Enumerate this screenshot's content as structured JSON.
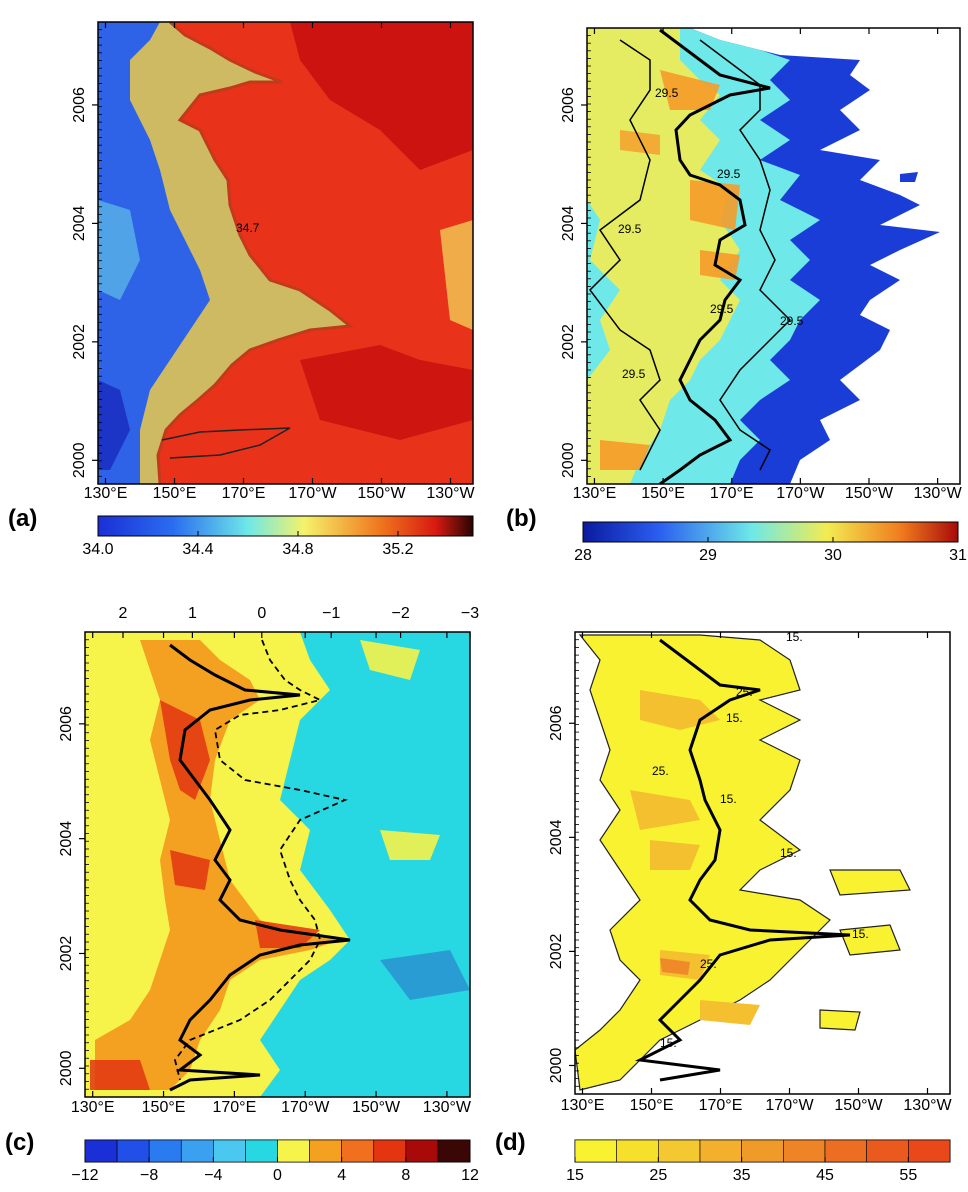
{
  "chart_data": [
    {
      "panel": "(a)",
      "type": "heatmap",
      "x_ticks": [
        "130°E",
        "150°E",
        "170°E",
        "170°W",
        "150°W",
        "130°W"
      ],
      "y_ticks": [
        "2000",
        "2002",
        "2004",
        "2006"
      ],
      "colorbar": {
        "ticks": [
          "34.0",
          "34.4",
          "34.8",
          "35.2"
        ],
        "range": [
          34.0,
          35.5
        ]
      },
      "contour_label": "34.7",
      "colors": {
        "low": "#1a2fd6",
        "mid": "#f5f26a",
        "high": "#e01a10",
        "contour": "#c23a1c"
      }
    },
    {
      "panel": "(b)",
      "type": "heatmap",
      "x_ticks": [
        "130°E",
        "150°E",
        "170°E",
        "170°W",
        "150°W",
        "130°W"
      ],
      "y_ticks": [
        "2000",
        "2002",
        "2004",
        "2006"
      ],
      "colorbar": {
        "ticks": [
          "28",
          "29",
          "30",
          "31"
        ],
        "range": [
          28,
          31
        ]
      },
      "contour_labels": [
        "29.5",
        "29.5",
        "29.5",
        "29.5",
        "29.5",
        "29.5"
      ],
      "colors": {
        "low": "#1a2fd6",
        "mid": "#6ee8e8",
        "high": "#f59b2a"
      }
    },
    {
      "panel": "(c)",
      "type": "heatmap",
      "x_ticks": [
        "130°E",
        "150°E",
        "170°E",
        "170°W",
        "150°W",
        "130°W"
      ],
      "y_ticks": [
        "2000",
        "2002",
        "2004",
        "2006"
      ],
      "top_axis_ticks": [
        "2",
        "1",
        "0",
        "−1",
        "−2",
        "−3"
      ],
      "colorbar": {
        "ticks": [
          "−12",
          "−8",
          "−4",
          "0",
          "4",
          "8",
          "12"
        ],
        "range": [
          -12,
          12
        ]
      },
      "colors": {
        "background": "#27d8e2",
        "warm1": "#f6f34a",
        "warm2": "#f4a020",
        "warm3": "#e23510"
      }
    },
    {
      "panel": "(d)",
      "type": "heatmap",
      "x_ticks": [
        "130°E",
        "150°E",
        "170°E",
        "170°W",
        "150°W",
        "130°W"
      ],
      "y_ticks": [
        "2000",
        "2002",
        "2004",
        "2006"
      ],
      "colorbar": {
        "ticks": [
          "15",
          "25",
          "35",
          "45",
          "55"
        ],
        "range": [
          15,
          60
        ]
      },
      "contour_labels": [
        "15.",
        "25.",
        "15.",
        "25.",
        "15.",
        "15.",
        "25.",
        "15.",
        "15."
      ],
      "colors": {
        "low": "#f8f230",
        "high": "#e8481a"
      }
    }
  ]
}
